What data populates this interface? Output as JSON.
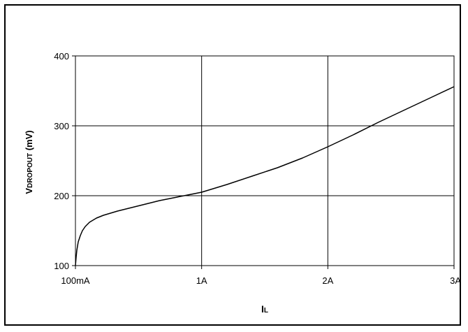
{
  "chart_data": {
    "type": "line",
    "title": "",
    "ylabel": {
      "main": "V",
      "sub": "DROPOUT",
      "unit": " (mV)"
    },
    "xlabel": {
      "main": "I",
      "sub": "L"
    },
    "x_ticks": [
      "100mA",
      "1A",
      "2A",
      "3A"
    ],
    "x_tick_values": [
      0.1,
      1,
      2,
      3
    ],
    "y_ticks": [
      "100",
      "200",
      "300",
      "400"
    ],
    "ylim": [
      100,
      400
    ],
    "grid": true,
    "legend": "none",
    "line_color": "#000000",
    "series": [
      {
        "x": [
          0.1,
          0.105,
          0.11,
          0.12,
          0.135,
          0.15,
          0.17,
          0.2,
          0.25,
          0.3,
          0.4,
          0.5,
          0.6,
          0.7,
          0.8,
          0.9,
          1.0,
          1.2,
          1.4,
          1.6,
          1.8,
          2.0,
          2.2,
          2.4,
          2.6,
          2.8,
          3.0
        ],
        "y": [
          100,
          112,
          122,
          134,
          143,
          150,
          156,
          162,
          168,
          172,
          178,
          183,
          188,
          193,
          197,
          201,
          205,
          216,
          228,
          240,
          254,
          270,
          287,
          305,
          322,
          339,
          356
        ]
      }
    ]
  }
}
